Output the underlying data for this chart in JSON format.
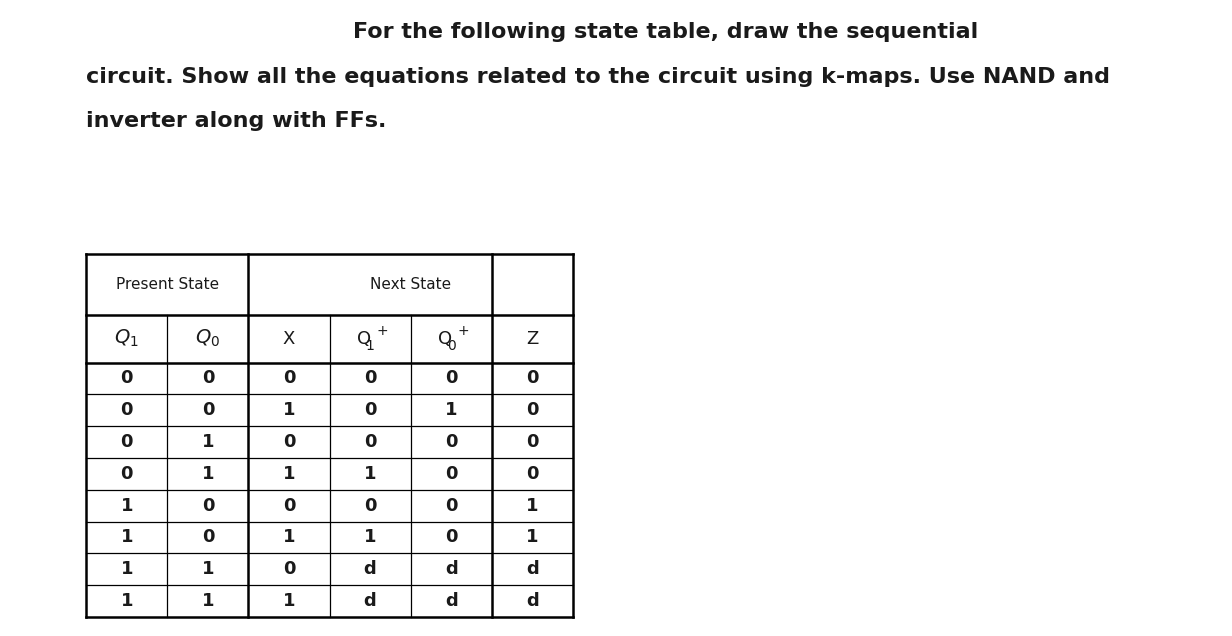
{
  "title_line1": "For the following state table, draw the sequential",
  "title_line2": "circuit. Show all the equations related to the circuit using k-maps. Use NAND and",
  "title_line3": "inverter along with FFs.",
  "present_state_label": "Present State",
  "next_state_label": "Next State",
  "rows": [
    [
      "0",
      "0",
      "0",
      "0",
      "0",
      "0"
    ],
    [
      "0",
      "0",
      "1",
      "0",
      "1",
      "0"
    ],
    [
      "0",
      "1",
      "0",
      "0",
      "0",
      "0"
    ],
    [
      "0",
      "1",
      "1",
      "1",
      "0",
      "0"
    ],
    [
      "1",
      "0",
      "0",
      "0",
      "0",
      "1"
    ],
    [
      "1",
      "0",
      "1",
      "1",
      "0",
      "1"
    ],
    [
      "1",
      "1",
      "0",
      "d",
      "d",
      "d"
    ],
    [
      "1",
      "1",
      "1",
      "d",
      "d",
      "d"
    ]
  ],
  "background_color": "#ffffff",
  "border_color": "#000000",
  "text_color": "#1a1a1a",
  "data_font_size": 13,
  "header_font_size": 11,
  "col_header_font_size": 13,
  "title_font_size": 16
}
